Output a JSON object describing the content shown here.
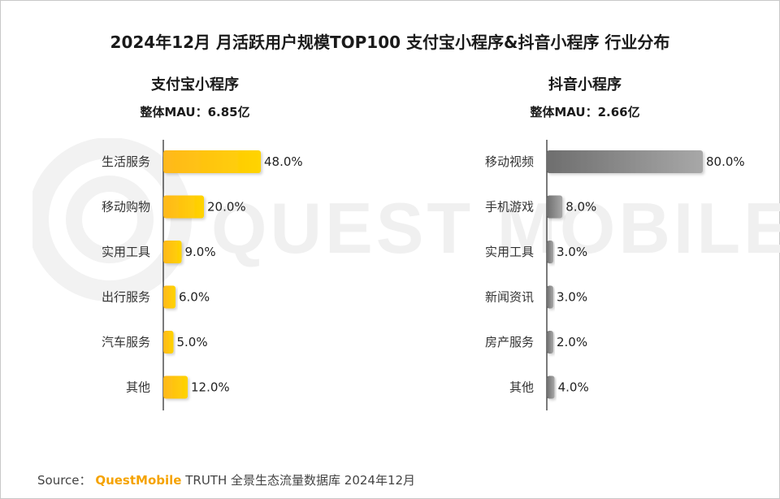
{
  "title": "2024年12月 月活跃用户规模TOP100 支付宝小程序&抖音小程序 行业分布",
  "watermark": "QUEST MOBILE",
  "source": {
    "prefix": "Source：",
    "brand": "QuestMobile",
    "text": "TRUTH 全景生态流量数据库 2024年12月"
  },
  "colors": {
    "left_bar_start": "#ffb81c",
    "left_bar_end": "#ffd400",
    "right_bar_start": "#6e6e6e",
    "right_bar_end": "#a8a8a8"
  },
  "chart_data": [
    {
      "type": "bar",
      "orientation": "horizontal",
      "title": "支付宝小程序",
      "subtitle": "整体MAU：6.85亿",
      "categories": [
        "生活服务",
        "移动购物",
        "实用工具",
        "出行服务",
        "汽车服务",
        "其他"
      ],
      "values": [
        48.0,
        20.0,
        9.0,
        6.0,
        5.0,
        12.0
      ],
      "value_labels": [
        "48.0%",
        "20.0%",
        "9.0%",
        "6.0%",
        "5.0%",
        "12.0%"
      ],
      "xlim": [
        0,
        100
      ],
      "grid": false
    },
    {
      "type": "bar",
      "orientation": "horizontal",
      "title": "抖音小程序",
      "subtitle": "整体MAU：2.66亿",
      "categories": [
        "移动视频",
        "手机游戏",
        "实用工具",
        "新闻资讯",
        "房产服务",
        "其他"
      ],
      "values": [
        80.0,
        8.0,
        3.0,
        3.0,
        2.0,
        4.0
      ],
      "value_labels": [
        "80.0%",
        "8.0%",
        "3.0%",
        "3.0%",
        "2.0%",
        "4.0%"
      ],
      "xlim": [
        0,
        100
      ],
      "grid": false
    }
  ]
}
